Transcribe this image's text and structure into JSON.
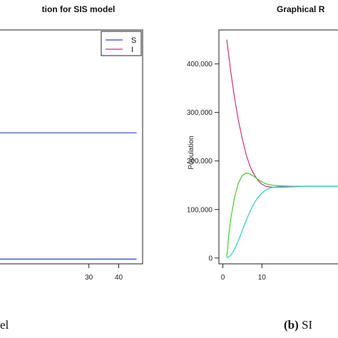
{
  "chart_data": [
    {
      "type": "line",
      "title": "tion for SIS model",
      "xlabel": "",
      "ylabel": "",
      "xlim": [
        0,
        48
      ],
      "ylim": [
        0,
        100
      ],
      "xticks": [
        "30",
        "40"
      ],
      "xtick_values": [
        30,
        40
      ],
      "grid": false,
      "legend": {
        "placement": "top-right",
        "entries": [
          {
            "label": "S",
            "color": "#3344cc"
          },
          {
            "label": "I",
            "color": "#cc3377"
          }
        ]
      },
      "series": [
        {
          "name": "S",
          "color": "#3344cc",
          "x": [
            0,
            46
          ],
          "y": [
            56,
            56
          ]
        },
        {
          "name": "I",
          "color": "#3344cc",
          "x": [
            0,
            46
          ],
          "y": [
            2,
            2
          ]
        }
      ],
      "caption": "el"
    },
    {
      "type": "line",
      "title": "Graphical R",
      "xlabel": "",
      "ylabel": "Population",
      "xlim": [
        -1,
        30
      ],
      "ylim": [
        -12000,
        470000
      ],
      "xticks": [
        "0",
        "10"
      ],
      "xtick_values": [
        0,
        10
      ],
      "yticks": [
        "0",
        "100,000",
        "200,000",
        "300,000",
        "400,000"
      ],
      "ytick_values": [
        0,
        100000,
        200000,
        300000,
        400000
      ],
      "grid": false,
      "series": [
        {
          "color": "#cc3377",
          "x": [
            1,
            2,
            3,
            4,
            5,
            6,
            7,
            8,
            9,
            10,
            11,
            12,
            13,
            14,
            16,
            18,
            20,
            22,
            24,
            26,
            28,
            30
          ],
          "y": [
            450000,
            385000,
            330000,
            283000,
            245000,
            212000,
            188000,
            172000,
            160000,
            152000,
            148000,
            146500,
            146000,
            146000,
            146500,
            147000,
            147500,
            148000,
            148000,
            148000,
            148000,
            148000
          ]
        },
        {
          "color": "#44cc33",
          "x": [
            1,
            1.5,
            2,
            3,
            4,
            5,
            6,
            7,
            8,
            9,
            10,
            11,
            12,
            13,
            14,
            16,
            18,
            20,
            22,
            24,
            26,
            28,
            30
          ],
          "y": [
            2000,
            45000,
            80000,
            125000,
            155000,
            170000,
            175000,
            173000,
            168000,
            162000,
            157000,
            153000,
            151000,
            150000,
            149000,
            148500,
            148000,
            148000,
            148000,
            148000,
            148000,
            148000,
            148000
          ]
        },
        {
          "color": "#33cccc",
          "x": [
            1,
            2,
            3,
            4,
            5,
            6,
            7,
            8,
            9,
            10,
            11,
            12,
            13,
            14,
            16,
            18,
            20,
            22,
            24,
            26,
            28,
            30
          ],
          "y": [
            0,
            5000,
            18000,
            36000,
            57000,
            78000,
            97000,
            113000,
            125000,
            134000,
            140000,
            144000,
            146000,
            147000,
            148000,
            148000,
            148000,
            148000,
            148000,
            148000,
            148000,
            148000
          ]
        }
      ],
      "caption": "(b) SI"
    }
  ],
  "colors": {
    "axis": "#222222",
    "blue": "#3344cc",
    "magenta": "#cc3377",
    "green": "#44cc33",
    "cyan": "#33cccc"
  }
}
